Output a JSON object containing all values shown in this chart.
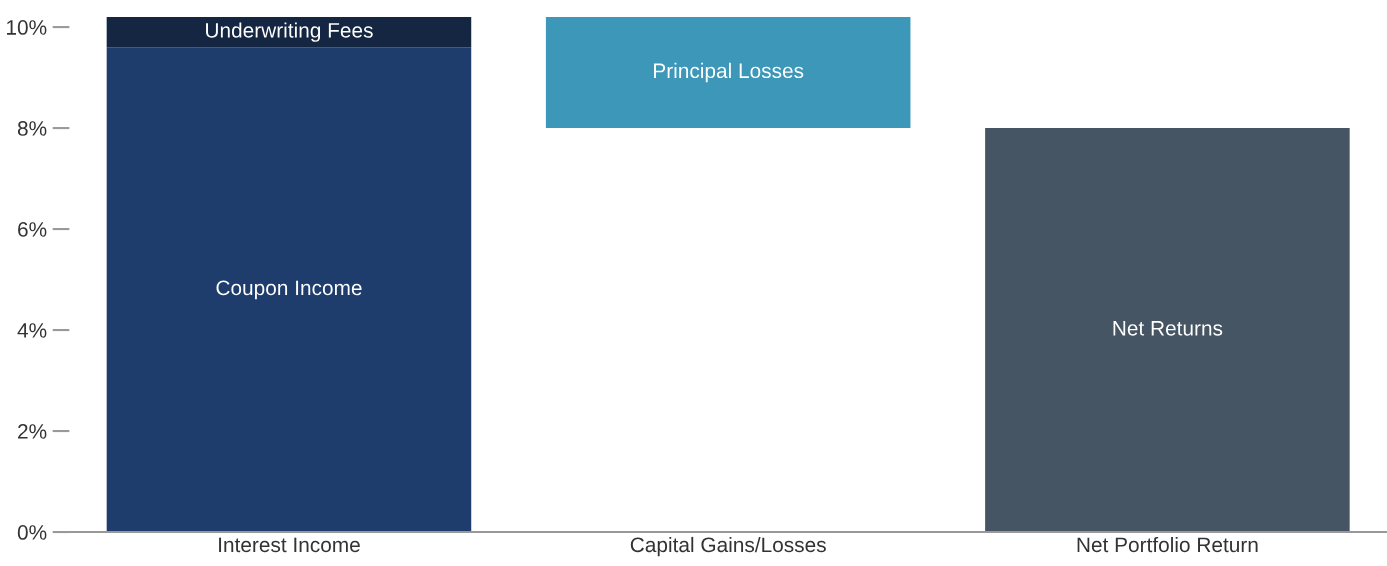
{
  "chart_data": {
    "type": "bar",
    "stacked": true,
    "categories": [
      "Interest Income",
      "Capital Gains/Losses",
      "Net Portfolio Return"
    ],
    "series": [
      {
        "name": "Coupon Income",
        "color": "#1e3d6c",
        "values": [
          9.6,
          null,
          null
        ]
      },
      {
        "name": "Underwriting Fees",
        "color": "#142642",
        "values": [
          0.6,
          null,
          null
        ]
      },
      {
        "name": "Principal Losses",
        "color": "#3d97b8",
        "values": [
          null,
          2.2,
          null
        ],
        "base": [
          null,
          8,
          null
        ]
      },
      {
        "name": "Net Returns",
        "color": "#455563",
        "values": [
          null,
          null,
          8
        ]
      }
    ],
    "ylim": [
      0,
      10.2
    ],
    "yticks": [
      {
        "value": 0,
        "label": "0%"
      },
      {
        "value": 2,
        "label": "2%"
      },
      {
        "value": 4,
        "label": "4%"
      },
      {
        "value": 6,
        "label": "6%"
      },
      {
        "value": 8,
        "label": "8%"
      },
      {
        "value": 10,
        "label": "10%"
      }
    ],
    "grid": false,
    "legend": false
  }
}
